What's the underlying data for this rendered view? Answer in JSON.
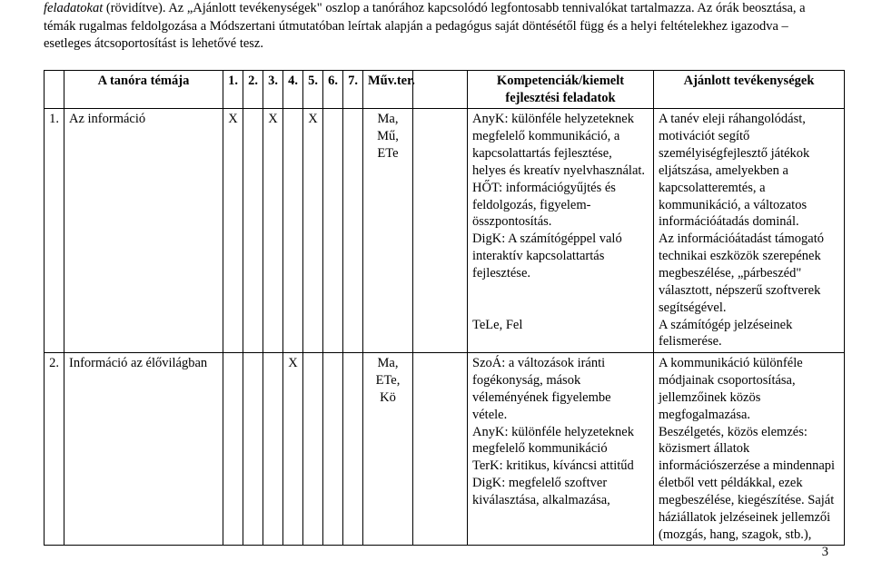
{
  "intro": {
    "p1_italic": "feladatokat",
    "p1_rest": " (rövidítve). Az „Ajánlott tevékenységek\" oszlop a tanórához kapcsolódó legfontosabb tennivalókat tartalmazza. Az órák beosztása, a témák rugalmas feldolgozása a Módszertani útmutatóban leírtak alapján a pedagógus saját döntésétől függ és a helyi feltételekhez igazodva – esetleges átcsoportosítást is lehetővé tesz."
  },
  "table": {
    "headers": {
      "topic": "A tanóra témája",
      "h1": "1.",
      "h2": "2.",
      "h3": "3.",
      "h4": "4.",
      "h5": "5.",
      "h6": "6.",
      "h7": "7.",
      "muvter": "Műv.ter.",
      "comp": "Kompetenciák/kiemelt fejlesztési feladatok",
      "act": "Ajánlott tevékenységek"
    },
    "rows": [
      {
        "num": "1.",
        "topic": "Az információ",
        "c1": "X",
        "c2": "",
        "c3": "X",
        "c4": "",
        "c5": "X",
        "c6": "",
        "c7": "",
        "muvter": "Ma, Mű, ETe",
        "comp": "AnyK: különféle helyzeteknek megfelelő kommunikáció, a kapcsolattartás fejlesztése, helyes és kreatív nyelvhasználat.\nHŐT: információgyűjtés és feldolgozás, figyelem-összpontosítás.\nDigK: A számítógéppel való interaktív kapcsolattartás fejlesztése.\n\nTeLe, Fel",
        "act": "A tanév eleji ráhangolódást, motivációt segítő személyiségfejlesztő játékok eljátszása, amelyekben a kapcsolatteremtés, a kommunikáció, a változatos információátadás dominál.\nAz információátadást támogató technikai eszközök szerepének megbeszélése, „párbeszéd\" választott, népszerű szoftverek segítségével.\nA számítógép jelzéseinek felismerése."
      },
      {
        "num": "2.",
        "topic": "Információ az élővilágban",
        "c1": "",
        "c2": "",
        "c3": "",
        "c4": "X",
        "c5": "",
        "c6": "",
        "c7": "",
        "muvter": "Ma, ETe, Kö",
        "comp": "SzoÁ: a változások iránti fogékonyság, mások véleményének figyelembe vétele.\nAnyK: különféle helyzeteknek megfelelő kommunikáció\nTerK: kritikus, kíváncsi attitűd\nDigK: megfelelő szoftver kiválasztása, alkalmazása,",
        "act": "A kommunikáció különféle módjainak csoportosítása, jellemzőinek közös megfogalmazása.\nBeszélgetés, közös elemzés: közismert állatok információszerzése a mindennapi életből vett példákkal, ezek megbeszélése, kiegészítése. Saját háziállatok jelzéseinek jellemzői (mozgás, hang, szagok, stb.),"
      }
    ]
  },
  "pagenum": "3"
}
